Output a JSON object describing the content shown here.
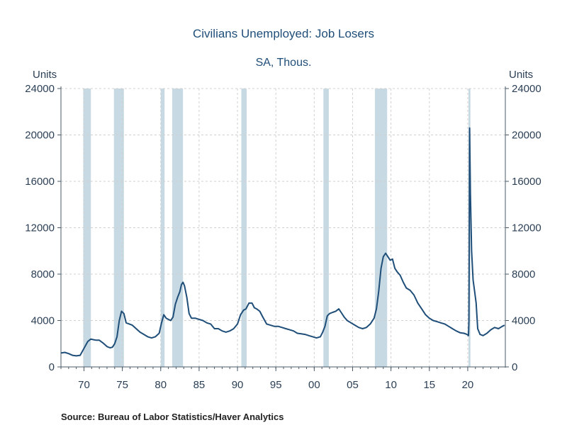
{
  "source_note": "Source:  Bureau of Labor Statistics/Haver Analytics",
  "chart_data": {
    "type": "line",
    "title": "Civilians Unemployed: Job Losers",
    "subtitle": "SA, Thous.",
    "ylabel_left": "Units",
    "ylabel_right": "Units",
    "ylim": [
      0,
      24000
    ],
    "xlim": [
      1967.0,
      2024.9
    ],
    "grid": true,
    "legend": "none",
    "series_color": "#1f4e79",
    "recession_color": "#c7d9e3",
    "y_ticks": [
      0,
      4000,
      8000,
      12000,
      16000,
      20000,
      24000
    ],
    "y_tick_labels": [
      "0",
      "4000",
      "8000",
      "12000",
      "16000",
      "20000",
      "24000"
    ],
    "x_ticks": [
      1970,
      1975,
      1980,
      1985,
      1990,
      1995,
      2000,
      2005,
      2010,
      2015,
      2020
    ],
    "x_tick_labels": [
      "70",
      "75",
      "80",
      "85",
      "90",
      "95",
      "00",
      "05",
      "10",
      "15",
      "20"
    ],
    "recessions": [
      [
        1969.9,
        1970.9
      ],
      [
        1973.9,
        1975.2
      ],
      [
        1980.0,
        1980.5
      ],
      [
        1981.5,
        1982.9
      ],
      [
        1990.5,
        1991.2
      ],
      [
        2001.2,
        2001.9
      ],
      [
        2007.9,
        2009.5
      ],
      [
        2020.1,
        2020.35
      ]
    ],
    "series": [
      {
        "name": "",
        "x": [
          1967.0,
          1967.5,
          1968.0,
          1968.5,
          1969.0,
          1969.5,
          1970.0,
          1970.5,
          1970.9,
          1971.2,
          1971.6,
          1972.0,
          1972.5,
          1973.0,
          1973.4,
          1973.7,
          1974.0,
          1974.3,
          1974.6,
          1974.9,
          1975.2,
          1975.5,
          1975.9,
          1976.3,
          1976.8,
          1977.3,
          1977.8,
          1978.3,
          1978.8,
          1979.3,
          1979.8,
          1980.1,
          1980.4,
          1980.7,
          1981.0,
          1981.3,
          1981.6,
          1981.9,
          1982.2,
          1982.5,
          1982.7,
          1982.9,
          1983.1,
          1983.4,
          1983.7,
          1984.0,
          1984.5,
          1985.0,
          1985.5,
          1986.0,
          1986.5,
          1987.0,
          1987.5,
          1988.0,
          1988.5,
          1989.0,
          1989.5,
          1990.0,
          1990.4,
          1990.8,
          1991.1,
          1991.5,
          1991.9,
          1992.2,
          1992.5,
          1992.9,
          1993.3,
          1993.8,
          1994.3,
          1994.8,
          1995.3,
          1995.8,
          1996.3,
          1996.8,
          1997.3,
          1997.8,
          1998.3,
          1998.8,
          1999.3,
          1999.8,
          2000.3,
          2000.8,
          2001.1,
          2001.4,
          2001.7,
          2002.0,
          2002.4,
          2002.8,
          2003.2,
          2003.5,
          2003.9,
          2004.3,
          2004.8,
          2005.3,
          2005.8,
          2006.3,
          2006.8,
          2007.3,
          2007.8,
          2008.1,
          2008.4,
          2008.7,
          2009.0,
          2009.3,
          2009.6,
          2009.9,
          2010.2,
          2010.5,
          2010.8,
          2011.2,
          2011.6,
          2012.0,
          2012.5,
          2013.0,
          2013.5,
          2014.0,
          2014.5,
          2015.0,
          2015.5,
          2016.0,
          2016.5,
          2017.0,
          2017.5,
          2018.0,
          2018.5,
          2019.0,
          2019.5,
          2019.9,
          2020.1,
          2020.15,
          2020.25,
          2020.35,
          2020.5,
          2020.7,
          2020.9,
          2021.1,
          2021.3,
          2021.6,
          2022.0,
          2022.5,
          2023.0,
          2023.5,
          2024.0,
          2024.5,
          2024.8
        ],
        "values": [
          1200,
          1250,
          1150,
          1000,
          950,
          1000,
          1600,
          2200,
          2400,
          2350,
          2300,
          2300,
          2050,
          1750,
          1650,
          1700,
          2000,
          2600,
          4000,
          4800,
          4600,
          3800,
          3700,
          3600,
          3300,
          3000,
          2800,
          2600,
          2500,
          2600,
          2900,
          3800,
          4500,
          4200,
          4100,
          4000,
          4300,
          5400,
          6000,
          6500,
          7100,
          7300,
          7000,
          6000,
          4600,
          4200,
          4200,
          4100,
          4000,
          3800,
          3700,
          3300,
          3300,
          3100,
          3000,
          3100,
          3300,
          3700,
          4500,
          4900,
          5000,
          5500,
          5500,
          5100,
          5000,
          4800,
          4300,
          3700,
          3600,
          3500,
          3500,
          3400,
          3300,
          3200,
          3100,
          2900,
          2850,
          2800,
          2700,
          2600,
          2500,
          2600,
          3000,
          3500,
          4400,
          4600,
          4700,
          4800,
          5000,
          4700,
          4300,
          4000,
          3800,
          3600,
          3400,
          3300,
          3400,
          3700,
          4200,
          5000,
          6500,
          8500,
          9500,
          9800,
          9500,
          9200,
          9300,
          8500,
          8200,
          7900,
          7300,
          6800,
          6600,
          6200,
          5500,
          5000,
          4500,
          4200,
          4000,
          3900,
          3800,
          3700,
          3500,
          3300,
          3100,
          2950,
          2900,
          2800,
          2700,
          4000,
          20600,
          15000,
          10000,
          7500,
          6500,
          5500,
          3300,
          2800,
          2700,
          2900,
          3200,
          3400,
          3300,
          3500,
          3600
        ]
      }
    ]
  }
}
